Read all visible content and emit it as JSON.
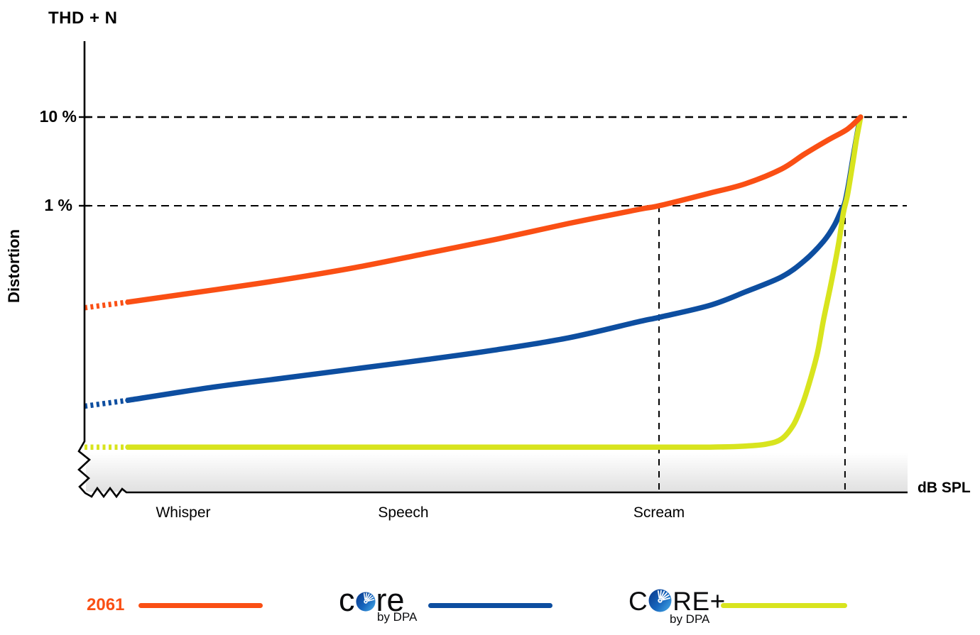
{
  "chart_data": {
    "type": "line",
    "title": "THD + N",
    "ylabel": "Distortion",
    "xlabel": "dB SPL",
    "y_scale": "log",
    "y_axis_break": true,
    "grid": "dashed horizontal at 10% and 1%, dashed vertical at scream level and max SPL",
    "y_ticks": [
      {
        "value": 10,
        "label": "10 %"
      },
      {
        "value": 1,
        "label": "1 %"
      }
    ],
    "x_categories": [
      {
        "label": "Whisper",
        "u": 0.12
      },
      {
        "label": "Speech",
        "u": 0.387
      },
      {
        "label": "Scream",
        "u": 0.698
      }
    ],
    "gridlines_at_percent": [
      10,
      1
    ],
    "dashed_vlines_u": [
      0.698,
      0.924
    ],
    "series": [
      {
        "name": "2061",
        "color": "#FA4F14",
        "dotted_lead_points": 2,
        "points_format": "[u = fraction along dB SPL axis, THD+N in %]",
        "points": [
          [
            0,
            0.0707
          ],
          [
            0.0526,
            0.082
          ],
          [
            0.156,
            0.112
          ],
          [
            0.242,
            0.147
          ],
          [
            0.329,
            0.201
          ],
          [
            0.415,
            0.29
          ],
          [
            0.501,
            0.42
          ],
          [
            0.588,
            0.631
          ],
          [
            0.674,
            0.912
          ],
          [
            0.698,
            1.0
          ],
          [
            0.76,
            1.39
          ],
          [
            0.803,
            1.77
          ],
          [
            0.847,
            2.6
          ],
          [
            0.875,
            3.84
          ],
          [
            0.904,
            5.55
          ],
          [
            0.927,
            7.31
          ],
          [
            0.943,
            10.0
          ]
        ]
      },
      {
        "name": "CORE by DPA",
        "color": "#0D4EA0",
        "dotted_lead_points": 2,
        "points_format": "[u = fraction along dB SPL axis, THD+N in %]",
        "points": [
          [
            0,
            0.0055
          ],
          [
            0.0526,
            0.0064
          ],
          [
            0.156,
            0.009
          ],
          [
            0.242,
            0.0114
          ],
          [
            0.329,
            0.0145
          ],
          [
            0.415,
            0.0184
          ],
          [
            0.501,
            0.0238
          ],
          [
            0.588,
            0.0324
          ],
          [
            0.674,
            0.0495
          ],
          [
            0.698,
            0.0552
          ],
          [
            0.76,
            0.0754
          ],
          [
            0.803,
            0.107
          ],
          [
            0.847,
            0.158
          ],
          [
            0.875,
            0.241
          ],
          [
            0.898,
            0.398
          ],
          [
            0.911,
            0.6
          ],
          [
            0.92,
            0.912
          ],
          [
            0.924,
            1.1
          ],
          [
            0.929,
            1.9
          ],
          [
            0.934,
            3.63
          ],
          [
            0.94,
            7.59
          ],
          [
            0.942,
            9.8
          ]
        ]
      },
      {
        "name": "CORE+ by DPA",
        "color": "#D8E41E",
        "dotted_lead_points": 2,
        "points_format": "[u = fraction along dB SPL axis, THD+N in %]",
        "points": [
          [
            0,
            0.0019
          ],
          [
            0.0526,
            0.0019
          ],
          [
            0.3,
            0.0019
          ],
          [
            0.5,
            0.0019
          ],
          [
            0.674,
            0.0019
          ],
          [
            0.76,
            0.0019
          ],
          [
            0.803,
            0.00195
          ],
          [
            0.829,
            0.00206
          ],
          [
            0.847,
            0.00235
          ],
          [
            0.861,
            0.00334
          ],
          [
            0.87,
            0.0051
          ],
          [
            0.878,
            0.00835
          ],
          [
            0.89,
            0.0209
          ],
          [
            0.898,
            0.0525
          ],
          [
            0.907,
            0.132
          ],
          [
            0.916,
            0.363
          ],
          [
            0.922,
            0.832
          ],
          [
            0.927,
            1.32
          ],
          [
            0.933,
            2.85
          ],
          [
            0.938,
            5.65
          ],
          [
            0.943,
            10.0
          ]
        ]
      }
    ]
  },
  "legend": {
    "items": [
      {
        "label": "2061",
        "color": "#FA4F14"
      },
      {
        "prefix": "c",
        "suffix": "re",
        "sub": "by DPA",
        "name": "CORE by DPA",
        "color": "#0D4EA0"
      },
      {
        "prefix": "C",
        "suffix": "RE+",
        "sub": "by DPA",
        "name": "CORE+ by DPA",
        "color": "#D8E41E"
      }
    ]
  }
}
